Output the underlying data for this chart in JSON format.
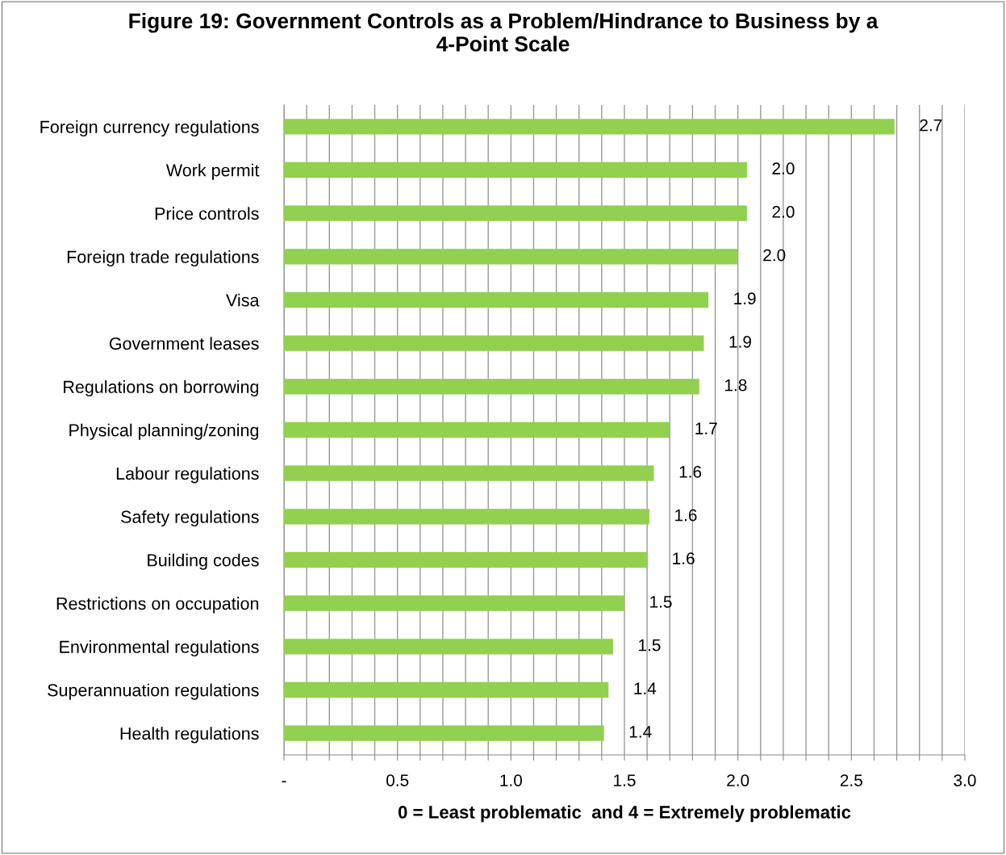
{
  "chart_data": {
    "type": "bar",
    "orientation": "horizontal",
    "title": "Figure 19: Government Controls as a Problem/Hindrance to Business by a\n4-Point Scale",
    "xlabel": "0 = Least problematic  and 4 = Extremely problematic",
    "categories": [
      "Foreign currency regulations",
      "Work permit",
      "Price controls",
      "Foreign trade regulations",
      "Visa",
      "Government leases",
      "Regulations on borrowing",
      "Physical planning/zoning",
      "Labour regulations",
      "Safety regulations",
      "Building codes",
      "Restrictions on occupation",
      "Environmental regulations",
      "Superannuation regulations",
      "Health regulations"
    ],
    "values": [
      2.69,
      2.04,
      2.04,
      2.0,
      1.87,
      1.85,
      1.83,
      1.7,
      1.63,
      1.61,
      1.6,
      1.5,
      1.45,
      1.43,
      1.41
    ],
    "value_labels": [
      "2.7",
      "2.0",
      "2.0",
      "2.0",
      "1.9",
      "1.9",
      "1.8",
      "1.7",
      "1.6",
      "1.6",
      "1.6",
      "1.5",
      "1.5",
      "1.4",
      "1.4"
    ],
    "color": "#92d050",
    "xlim": [
      0,
      3
    ],
    "xticks": [
      {
        "value": 0,
        "label": "-"
      },
      {
        "value": 0.1,
        "label": null
      },
      {
        "value": 0.2,
        "label": null
      },
      {
        "value": 0.3,
        "label": null
      },
      {
        "value": 0.4,
        "label": null
      },
      0.5,
      {
        "value": 0.6,
        "label": null
      },
      {
        "value": 0.7,
        "label": null
      },
      {
        "value": 0.8,
        "label": null
      },
      {
        "value": 0.9,
        "label": null
      },
      {
        "value": 1.0,
        "label": "1.0"
      },
      {
        "value": 1.1,
        "label": null
      },
      {
        "value": 1.2,
        "label": null
      },
      {
        "value": 1.3,
        "label": null
      },
      {
        "value": 1.4,
        "label": null
      },
      1.5,
      {
        "value": 1.6,
        "label": null
      },
      {
        "value": 1.7,
        "label": null
      },
      {
        "value": 1.8,
        "label": null
      },
      {
        "value": 1.9,
        "label": null
      },
      {
        "value": 2.0,
        "label": "2.0"
      },
      {
        "value": 2.1,
        "label": null
      },
      {
        "value": 2.2,
        "label": null
      },
      {
        "value": 2.3,
        "label": null
      },
      {
        "value": 2.4,
        "label": null
      },
      2.5,
      {
        "value": 2.6,
        "label": null
      },
      {
        "value": 2.7,
        "label": null
      },
      {
        "value": 2.8,
        "label": null
      },
      {
        "value": 2.9,
        "label": null
      },
      {
        "value": 3.0,
        "label": "3.0"
      }
    ],
    "grid": "x"
  }
}
